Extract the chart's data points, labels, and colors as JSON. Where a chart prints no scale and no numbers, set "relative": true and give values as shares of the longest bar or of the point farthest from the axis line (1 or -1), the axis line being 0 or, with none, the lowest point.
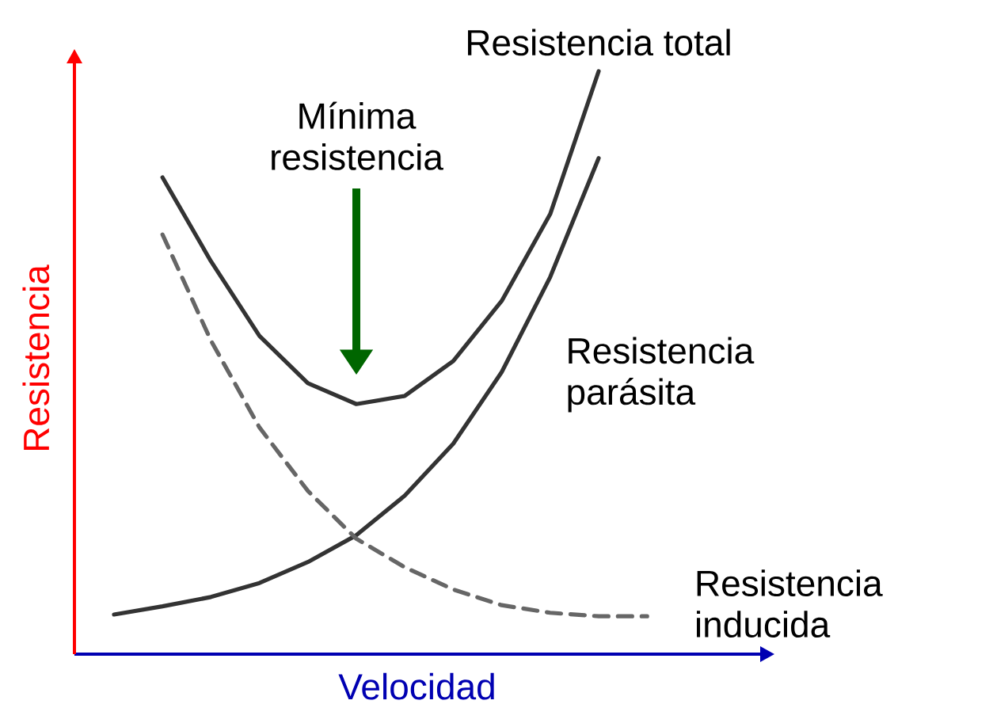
{
  "chart_data": {
    "type": "line",
    "relative": true,
    "marker": "none",
    "xlabel": "Velocidad",
    "ylabel": "Resistencia",
    "categories": [
      null,
      null,
      null,
      null,
      null,
      null,
      null,
      null,
      null,
      null,
      null,
      null,
      null
    ],
    "series": [
      {
        "name": "Resistencia total",
        "color": "#333333",
        "line_style": "solid",
        "values": [
          null,
          0.818,
          0.674,
          0.546,
          0.465,
          0.429,
          0.443,
          0.503,
          0.606,
          0.755,
          1.0,
          null,
          null
        ]
      },
      {
        "name": "Resistencia parásita",
        "color": "#333333",
        "line_style": "solid",
        "values": [
          0.068,
          0.082,
          0.098,
          0.122,
          0.158,
          0.204,
          0.272,
          0.361,
          0.484,
          0.647,
          0.851,
          null,
          null
        ]
      },
      {
        "name": "Resistencia inducida",
        "color": "#666666",
        "line_style": "dashed",
        "values": [
          null,
          0.72,
          0.538,
          0.389,
          0.28,
          0.198,
          0.149,
          0.111,
          0.084,
          0.071,
          0.065,
          0.065,
          null
        ]
      }
    ],
    "annotations": [
      "Mínima resistencia"
    ]
  }
}
